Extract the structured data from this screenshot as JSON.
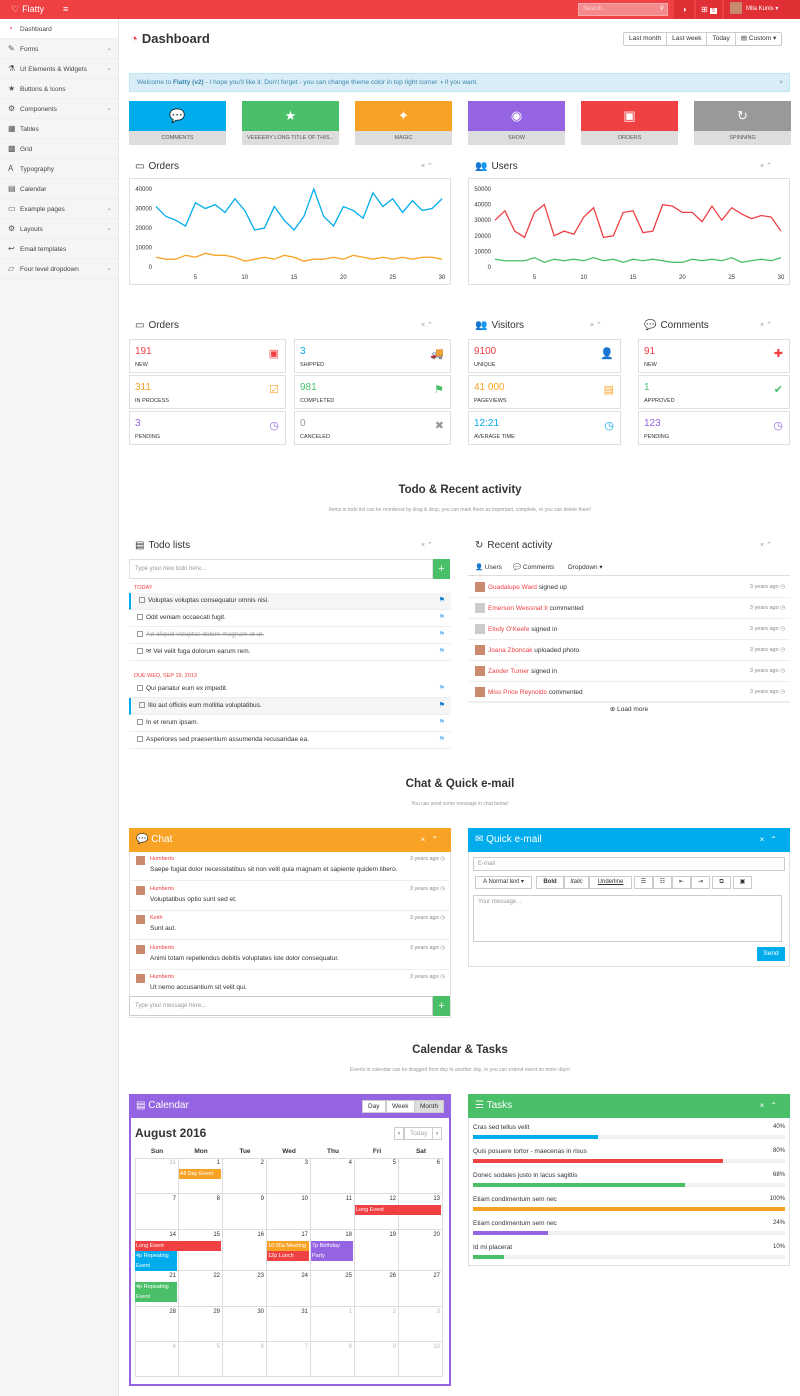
{
  "topbar": {
    "brand": "Flatty",
    "search_placeholder": "Search...",
    "mail_count": "5",
    "user_name": "Mila Kunis"
  },
  "sidebar": {
    "items": [
      {
        "label": "Dashboard",
        "icon": "dashboard-icon",
        "glyph": "◔",
        "chev": ""
      },
      {
        "label": "Forms",
        "icon": "edit-icon",
        "glyph": "✎",
        "chev": "⌄"
      },
      {
        "label": "UI Elements & Widgets",
        "icon": "tint-icon",
        "glyph": "⚗",
        "chev": "⌄"
      },
      {
        "label": "Buttons & Icons",
        "icon": "star-icon",
        "glyph": "★",
        "chev": ""
      },
      {
        "label": "Components",
        "icon": "cogs-icon",
        "glyph": "⚙",
        "chev": "⌄"
      },
      {
        "label": "Tables",
        "icon": "table-icon",
        "glyph": "▦",
        "chev": ""
      },
      {
        "label": "Grid",
        "icon": "grid-icon",
        "glyph": "▩",
        "chev": ""
      },
      {
        "label": "Typography",
        "icon": "font-icon",
        "glyph": "A",
        "chev": ""
      },
      {
        "label": "Calendar",
        "icon": "calendar-icon",
        "glyph": "▤",
        "chev": ""
      },
      {
        "label": "Example pages",
        "icon": "folder-icon",
        "glyph": "▭",
        "chev": "⌄"
      },
      {
        "label": "Layouts",
        "icon": "cog-icon",
        "glyph": "⚙",
        "chev": "⌄"
      },
      {
        "label": "Email templates",
        "icon": "reply-icon",
        "glyph": "↩",
        "chev": ""
      },
      {
        "label": "Four level dropdown",
        "icon": "folder-open-icon",
        "glyph": "▱",
        "chev": "⌄"
      }
    ]
  },
  "page": {
    "title": "Dashboard",
    "date_buttons": [
      "Last month",
      "Last week",
      "Today",
      "Custom ▾"
    ]
  },
  "alert": {
    "pre": "Welcome to ",
    "brand": "Flatty (v2)",
    "post": " - I hope you'll like it. Don't forget - you can change theme color in top right corner ◑ if you want.",
    "close": "×"
  },
  "tiles": [
    {
      "label": "COMMENTS",
      "glyph": "💬",
      "icon": "comments-icon",
      "color": "#00acec"
    },
    {
      "label": "VEEEERY LONG TITLE OF THIS...",
      "glyph": "★",
      "icon": "star-icon",
      "color": "#49bf67"
    },
    {
      "label": "MAGIC",
      "glyph": "✦",
      "icon": "magic-icon",
      "color": "#f8a326"
    },
    {
      "label": "SHOW",
      "glyph": "◉",
      "icon": "eye-icon",
      "color": "#9564e2"
    },
    {
      "label": "ORDERS",
      "glyph": "▣",
      "icon": "inbox-icon",
      "color": "#ef4044"
    },
    {
      "label": "SPINNING",
      "glyph": "↻",
      "icon": "refresh-icon",
      "color": "#999999"
    }
  ],
  "box_controls": "× ⌃",
  "orders_chart": {
    "title": "Orders",
    "chart_data": {
      "type": "line",
      "x": [
        1,
        2,
        3,
        4,
        5,
        6,
        7,
        8,
        9,
        10,
        11,
        12,
        13,
        14,
        15,
        16,
        17,
        18,
        19,
        20,
        21,
        22,
        23,
        24,
        25,
        26,
        27,
        28,
        29,
        30
      ],
      "ylim": [
        0,
        40000
      ],
      "yticks": [
        "40000",
        "30000",
        "20000",
        "10000",
        "0"
      ],
      "xticks": [
        "5",
        "10",
        "15",
        "20",
        "25",
        "30"
      ],
      "series": [
        {
          "color": "#00acec",
          "values": [
            31000,
            26000,
            24000,
            21000,
            33000,
            30000,
            32000,
            28000,
            35000,
            29000,
            19000,
            20000,
            31000,
            24000,
            19000,
            26000,
            40000,
            26000,
            21000,
            31000,
            29000,
            25000,
            38000,
            31000,
            35000,
            28000,
            34000,
            29000,
            30000,
            35000
          ]
        },
        {
          "color": "#f8a326",
          "values": [
            5000,
            4000,
            4000,
            6000,
            5000,
            7000,
            6000,
            6000,
            5000,
            3000,
            4000,
            5000,
            4000,
            6000,
            5000,
            3000,
            4000,
            4000,
            5000,
            4000,
            6000,
            5000,
            4000,
            5000,
            4000,
            5000,
            4000,
            5000,
            5000,
            4000
          ]
        }
      ]
    }
  },
  "users_chart": {
    "title": "Users",
    "chart_data": {
      "type": "line",
      "x": [
        1,
        2,
        3,
        4,
        5,
        6,
        7,
        8,
        9,
        10,
        11,
        12,
        13,
        14,
        15,
        16,
        17,
        18,
        19,
        20,
        21,
        22,
        23,
        24,
        25,
        26,
        27,
        28,
        29,
        30
      ],
      "ylim": [
        0,
        50000
      ],
      "yticks": [
        "50000",
        "40000",
        "30000",
        "20000",
        "10000",
        "0"
      ],
      "xticks": [
        "5",
        "10",
        "15",
        "20",
        "25",
        "30"
      ],
      "series": [
        {
          "color": "#ef4044",
          "values": [
            30000,
            36000,
            23000,
            19000,
            35000,
            40000,
            20000,
            23000,
            21000,
            32000,
            38000,
            19000,
            20000,
            35000,
            36000,
            22000,
            23000,
            40000,
            39000,
            35000,
            35000,
            29000,
            39000,
            30000,
            38000,
            34000,
            31000,
            33000,
            32000,
            23000
          ]
        },
        {
          "color": "#49bf67",
          "values": [
            5000,
            4000,
            4000,
            4000,
            6000,
            3000,
            5000,
            4000,
            5000,
            4000,
            6000,
            4000,
            5000,
            3000,
            5000,
            4000,
            5000,
            4000,
            3000,
            3000,
            5000,
            4000,
            5000,
            4000,
            6000,
            3000,
            4000,
            5000,
            4000,
            6000
          ]
        }
      ]
    }
  },
  "stats": {
    "orders_title": "Orders",
    "visitors_title": "Visitors",
    "comments_title": "Comments",
    "items": [
      {
        "value": "191",
        "label": "NEW",
        "color": "#ef4044",
        "glyph": "▣",
        "icon": "inbox-icon"
      },
      {
        "value": "3",
        "label": "SHIPPED",
        "color": "#00acec",
        "glyph": "🚚",
        "icon": "truck-icon"
      },
      {
        "value": "311",
        "label": "IN PROCESS",
        "color": "#f8a326",
        "glyph": "☑",
        "icon": "check-square-icon"
      },
      {
        "value": "981",
        "label": "COMPLETED",
        "color": "#49bf67",
        "glyph": "⚑",
        "icon": "flag-icon"
      },
      {
        "value": "3",
        "label": "PENDING",
        "color": "#9564e2",
        "glyph": "◷",
        "icon": "clock-icon"
      },
      {
        "value": "0",
        "label": "CANCELED",
        "color": "#999999",
        "glyph": "✖",
        "icon": "times-icon"
      },
      {
        "value": "9100",
        "label": "UNIQUE",
        "color": "#ef4044",
        "glyph": "👤",
        "icon": "user-icon"
      },
      {
        "value": "41 000",
        "label": "PAGEVIEWS",
        "color": "#f8a326",
        "glyph": "▤",
        "icon": "book-icon"
      },
      {
        "value": "12:21",
        "label": "AVERAGE TIME",
        "color": "#00acec",
        "glyph": "◷",
        "icon": "clock-icon"
      },
      {
        "value": "91",
        "label": "NEW",
        "color": "#ef4044",
        "glyph": "✚",
        "icon": "plus-icon"
      },
      {
        "value": "1",
        "label": "APPROVED",
        "color": "#49bf67",
        "glyph": "✔",
        "icon": "check-icon"
      },
      {
        "value": "123",
        "label": "PENDING",
        "color": "#9564e2",
        "glyph": "◷",
        "icon": "clock-icon"
      }
    ]
  },
  "todo_section": {
    "title": "Todo & Recent activity",
    "subtitle": "Items in todo list can be reordered by drag & drop, you can mark them as important, complete, or you can delete them!"
  },
  "todo": {
    "title": "Todo lists",
    "placeholder": "Type your new todo here...",
    "today": "TODAY",
    "due": "DUE WED, SEP 19, 2013",
    "items1": [
      {
        "text": "Voluptas voluptas consequatur omnis nisi.",
        "imp": true,
        "done": false
      },
      {
        "text": "Odit veniam occaecati fugit.",
        "imp": false,
        "done": false
      },
      {
        "text": "Ad aliquid voluptas dolore magnam at ut.",
        "imp": false,
        "done": true
      },
      {
        "text": "✉ Vel velit fuga dolorum earum rem.",
        "imp": false,
        "done": false
      }
    ],
    "items2": [
      {
        "text": "Qui pariatur eum ex impedit.",
        "imp": false,
        "done": false
      },
      {
        "text": "Illo aut officiis eum mollitia voluptatibus.",
        "imp": true,
        "done": false
      },
      {
        "text": "In et rerum ipsam.",
        "imp": false,
        "done": false
      },
      {
        "text": "Asperiores sed praesentium assumenda recusandae ea.",
        "imp": false,
        "done": false
      }
    ]
  },
  "activity": {
    "title": "Recent activity",
    "tabs": [
      "Users",
      "Comments",
      "Dropdown ▾"
    ],
    "load_more": "Load more",
    "items": [
      {
        "name": "Guadalupe Ward",
        "action": " signed up",
        "time": "3 years ago ◷",
        "photo": true
      },
      {
        "name": "Emerson Weissnat II",
        "action": " commented",
        "time": "3 years ago ◷",
        "photo": false
      },
      {
        "name": "Elody O'Keefe",
        "action": " signed in",
        "time": "3 years ago ◷",
        "photo": false
      },
      {
        "name": "Joana Zboncak",
        "action": " uploaded photo",
        "time": "3 years ago ◷",
        "photo": true
      },
      {
        "name": "Zander Turner",
        "action": " signed in",
        "time": "3 years ago ◷",
        "photo": true
      },
      {
        "name": "Miss Price Reynolds",
        "action": " commented",
        "time": "3 years ago ◷",
        "photo": true
      }
    ]
  },
  "chat_section": {
    "title": "Chat & Quick e-mail",
    "subtitle": "You can send some message in chat below!"
  },
  "chat": {
    "title": "Chat",
    "placeholder": "Type your message here...",
    "messages": [
      {
        "name": "Humberto",
        "time": "3 years ago ◷",
        "text": "Saepe fugiat dolor necessitatibus sit non velit quia magnam et sapiente quidem libero."
      },
      {
        "name": "Humberto",
        "time": "3 years ago ◷",
        "text": "Voluptatibus optio sunt sed et."
      },
      {
        "name": "Keith",
        "time": "3 years ago ◷",
        "text": "Sunt aut."
      },
      {
        "name": "Humberto",
        "time": "3 years ago ◷",
        "text": "Animi totam repellendus debitis voluptates iste dolor consequatur."
      },
      {
        "name": "Humberto",
        "time": "3 years ago ◷",
        "text": "Ut nemo accusantium sit velit qui."
      }
    ]
  },
  "email": {
    "title": "Quick e-mail",
    "email_placeholder": "E-mail",
    "message_placeholder": "Your message...",
    "toolbar": [
      "A Normal text ▾",
      "Bold",
      "Italic",
      "Underline",
      "☰",
      "☷",
      "⇤",
      "⇥",
      "⧉",
      "▣"
    ],
    "send": "Send"
  },
  "calendar_section": {
    "title": "Calendar & Tasks",
    "subtitle": "Events in calendar can be dragged from day to another day, or you can extend event on more days!"
  },
  "calendar": {
    "title": "Calendar",
    "views": [
      "Day",
      "Week",
      "Month"
    ],
    "month": "August 2016",
    "today_btn": "Today",
    "prev": "‹",
    "next": "›",
    "dows": [
      "Sun",
      "Mon",
      "Tue",
      "Wed",
      "Thu",
      "Fri",
      "Sat"
    ],
    "weeks": [
      [
        "31",
        "1",
        "2",
        "3",
        "4",
        "5",
        "6"
      ],
      [
        "7",
        "8",
        "9",
        "10",
        "11",
        "12",
        "13"
      ],
      [
        "14",
        "15",
        "16",
        "17",
        "18",
        "19",
        "20"
      ],
      [
        "21",
        "22",
        "23",
        "24",
        "25",
        "26",
        "27"
      ],
      [
        "28",
        "29",
        "30",
        "31",
        "1",
        "2",
        "3"
      ],
      [
        "4",
        "5",
        "6",
        "7",
        "8",
        "9",
        "10"
      ]
    ],
    "events": [
      {
        "text": "All Day Event",
        "color": "#f8a326"
      },
      {
        "text": "Long Event",
        "color": "#ef4044"
      },
      {
        "text": "Long Event",
        "color": "#ef4044"
      },
      {
        "text": "4p Repeating Event",
        "color": "#00acec"
      },
      {
        "text": "10:30a Meeting",
        "color": "#f8a326"
      },
      {
        "text": "12p Lunch",
        "color": "#ef4044"
      },
      {
        "text": "7p Birthday Party",
        "color": "#9564e2"
      },
      {
        "text": "4p Repeating Event",
        "color": "#49bf67"
      }
    ]
  },
  "tasks": {
    "title": "Tasks",
    "items": [
      {
        "name": "Cras sed tellus velit",
        "pct": "40%",
        "value": 40,
        "color": "#00acec"
      },
      {
        "name": "Quis posuere tortor - maecenas in risus",
        "pct": "80%",
        "value": 80,
        "color": "#ef4044"
      },
      {
        "name": "Donec sodales justo in lacus sagittis",
        "pct": "68%",
        "value": 68,
        "color": "#49bf67"
      },
      {
        "name": "Etiam condimentum sem nec",
        "pct": "100%",
        "value": 100,
        "color": "#f8a326"
      },
      {
        "name": "Etiam condimentum sem nec",
        "pct": "24%",
        "value": 24,
        "color": "#9564e2"
      },
      {
        "name": "Id mi placerat",
        "pct": "10%",
        "value": 10,
        "color": "#49bf67"
      }
    ]
  }
}
